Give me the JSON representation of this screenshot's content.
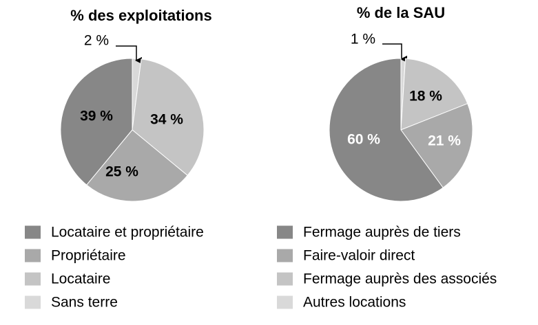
{
  "chart_data": [
    {
      "type": "pie",
      "title": "% des exploitations",
      "slices": [
        {
          "label": "Sans terre",
          "value": 2,
          "value_label": "2 %",
          "color": "#d9d9d9"
        },
        {
          "label": "Locataire",
          "value": 34,
          "value_label": "34 %",
          "color": "#c4c4c4"
        },
        {
          "label": "Propriétaire",
          "value": 25,
          "value_label": "25 %",
          "color": "#a9a9a9"
        },
        {
          "label": "Locataire et propriétaire",
          "value": 39,
          "value_label": "39 %",
          "color": "#878787"
        }
      ],
      "legend": {
        "placement": "bottom-left",
        "items": [
          {
            "label": "Locataire et propriétaire",
            "color": "#878787"
          },
          {
            "label": "Propriétaire",
            "color": "#a9a9a9"
          },
          {
            "label": "Locataire",
            "color": "#c4c4c4"
          },
          {
            "label": "Sans terre",
            "color": "#d9d9d9"
          }
        ]
      }
    },
    {
      "type": "pie",
      "title": "% de la SAU",
      "slices": [
        {
          "label": "Autres locations",
          "value": 1,
          "value_label": "1 %",
          "color": "#d9d9d9"
        },
        {
          "label": "Fermage auprès des associés",
          "value": 18,
          "value_label": "18 %",
          "color": "#c4c4c4"
        },
        {
          "label": "Faire-valoir direct",
          "value": 21,
          "value_label": "21 %",
          "color": "#a9a9a9"
        },
        {
          "label": "Fermage auprès de tiers",
          "value": 60,
          "value_label": "60 %",
          "color": "#878787"
        }
      ],
      "legend": {
        "placement": "bottom-right",
        "items": [
          {
            "label": "Fermage auprès de tiers",
            "color": "#878787"
          },
          {
            "label": "Faire-valoir direct",
            "color": "#a9a9a9"
          },
          {
            "label": "Fermage auprès des associés",
            "color": "#c4c4c4"
          },
          {
            "label": "Autres locations",
            "color": "#d9d9d9"
          }
        ]
      }
    }
  ]
}
